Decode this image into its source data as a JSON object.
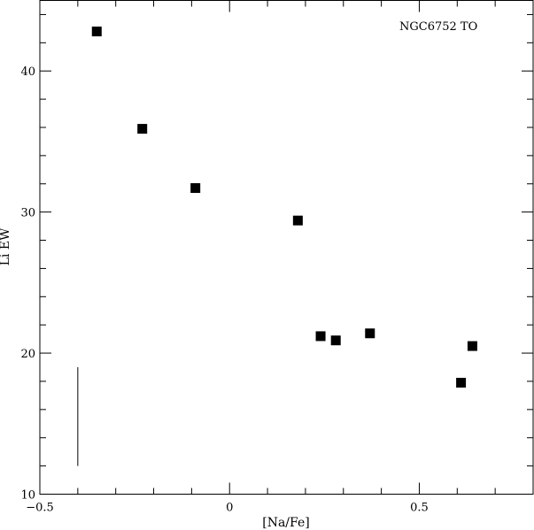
{
  "chart_data": {
    "type": "scatter",
    "xlabel": "[Na/Fe]",
    "ylabel": "Li EW",
    "annotation": "NGC6752 TO",
    "xlim": [
      -0.5,
      0.8
    ],
    "ylim": [
      10,
      45
    ],
    "x_ticks": [
      -0.5,
      0,
      0.5
    ],
    "x_tick_labels": [
      "−0.5",
      "0",
      "0.5"
    ],
    "y_ticks": [
      10,
      20,
      30,
      40
    ],
    "y_tick_labels": [
      "10",
      "20",
      "30",
      "40"
    ],
    "x_minor_step": 0.1,
    "y_minor_step": 2,
    "grid": false,
    "series": [
      {
        "marker": "square",
        "color": "#000000",
        "points": [
          {
            "x": -0.35,
            "y": 42.8
          },
          {
            "x": -0.23,
            "y": 35.9
          },
          {
            "x": -0.09,
            "y": 31.7
          },
          {
            "x": 0.18,
            "y": 29.4
          },
          {
            "x": 0.24,
            "y": 21.2
          },
          {
            "x": 0.28,
            "y": 20.9
          },
          {
            "x": 0.37,
            "y": 21.4
          },
          {
            "x": 0.61,
            "y": 17.9
          },
          {
            "x": 0.64,
            "y": 20.5
          }
        ]
      }
    ],
    "error_bar": {
      "x": -0.4,
      "y_low": 12.0,
      "y_high": 19.0
    }
  }
}
